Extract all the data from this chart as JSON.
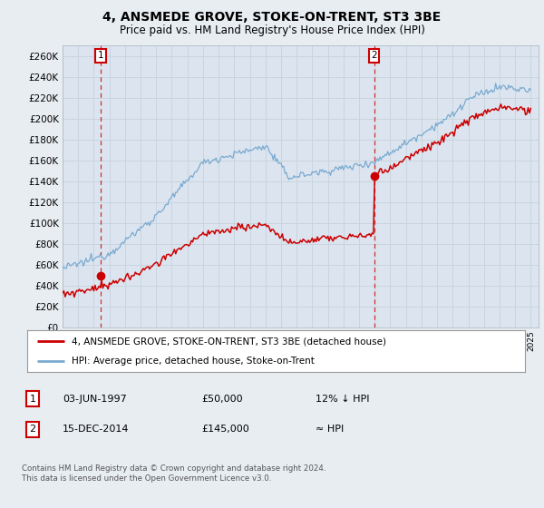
{
  "title": "4, ANSMEDE GROVE, STOKE-ON-TRENT, ST3 3BE",
  "subtitle": "Price paid vs. HM Land Registry's House Price Index (HPI)",
  "legend_line1": "4, ANSMEDE GROVE, STOKE-ON-TRENT, ST3 3BE (detached house)",
  "legend_line2": "HPI: Average price, detached house, Stoke-on-Trent",
  "annotation1_date": "03-JUN-1997",
  "annotation1_price": "£50,000",
  "annotation1_hpi": "12% ↓ HPI",
  "annotation2_date": "15-DEC-2014",
  "annotation2_price": "£145,000",
  "annotation2_hpi": "≈ HPI",
  "copyright": "Contains HM Land Registry data © Crown copyright and database right 2024.\nThis data is licensed under the Open Government Licence v3.0.",
  "ylim": [
    0,
    270000
  ],
  "yticks": [
    0,
    20000,
    40000,
    60000,
    80000,
    100000,
    120000,
    140000,
    160000,
    180000,
    200000,
    220000,
    240000,
    260000
  ],
  "background_color": "#e8edf2",
  "plot_bg_color": "#dce5ef",
  "grid_color": "#c8d4e0",
  "red_line_color": "#cc0000",
  "blue_line_color": "#7aaad0",
  "annotation_color": "#cc0000",
  "sale1_x": 1997.42,
  "sale1_y": 50000,
  "sale2_x": 2014.96,
  "sale2_y": 145000,
  "xmin": 1995,
  "xmax": 2025.5
}
